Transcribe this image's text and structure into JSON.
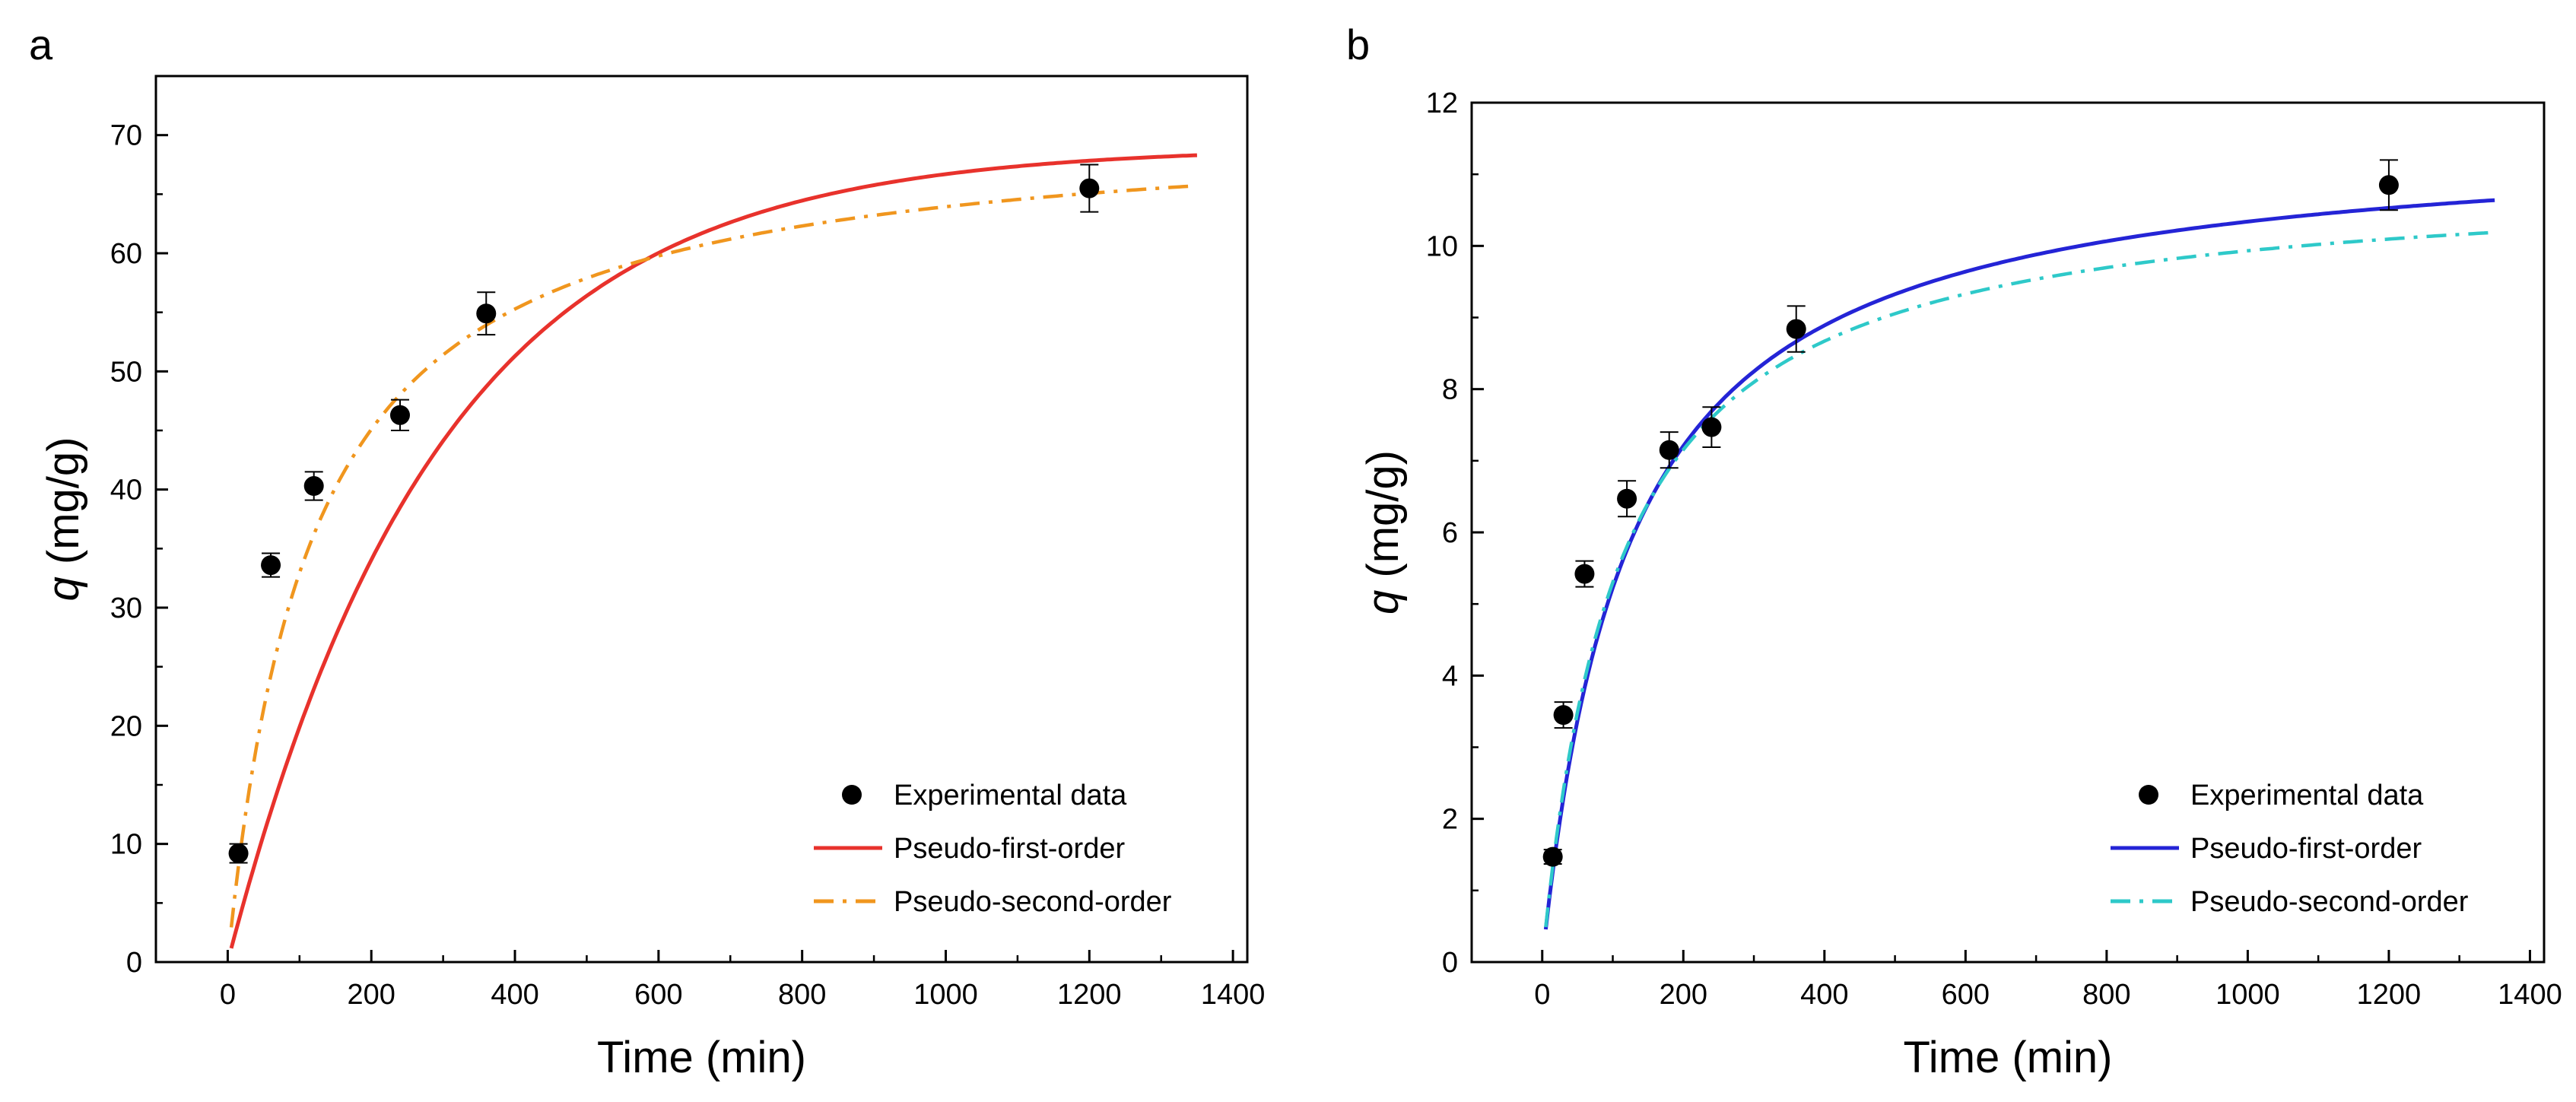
{
  "chart_data": [
    {
      "panel_label": "a",
      "type": "scatter",
      "xlabel": "Time (min)",
      "ylabel_symbol": "q",
      "ylabel_unit": " (mg/g)",
      "xlim": [
        -100,
        1420
      ],
      "ylim": [
        0,
        75
      ],
      "xticks": [
        0,
        200,
        400,
        600,
        800,
        1000,
        1200,
        1400
      ],
      "yticks": [
        0,
        10,
        20,
        30,
        40,
        50,
        60,
        70
      ],
      "legend_position": "bottom-right",
      "experimental": {
        "name": "Experimental data",
        "x": [
          15,
          60,
          120,
          240,
          360,
          1200
        ],
        "y": [
          9.2,
          33.6,
          40.3,
          46.3,
          54.9,
          65.5
        ],
        "error": [
          0.8,
          1.0,
          1.2,
          1.3,
          1.8,
          2.0
        ]
      },
      "series": [
        {
          "name": "Pseudo-first-order",
          "model": "pfo",
          "qe": 69.0,
          "k": 0.0034,
          "color": "#e8322c",
          "dash": "solid"
        },
        {
          "name": "Pseudo-second-order",
          "model": "pso",
          "qe": 71.4,
          "k": 0.00012,
          "color": "#f0961e",
          "dash": "dashdot"
        }
      ]
    },
    {
      "panel_label": "b",
      "type": "scatter",
      "xlabel": "Time (min)",
      "ylabel_symbol": "q",
      "ylabel_unit": " (mg/g)",
      "xlim": [
        -100,
        1420
      ],
      "ylim": [
        0,
        12
      ],
      "xticks": [
        0,
        200,
        400,
        600,
        800,
        1000,
        1200,
        1400
      ],
      "yticks": [
        0,
        2,
        4,
        6,
        8,
        10,
        12
      ],
      "legend_position": "bottom-right",
      "experimental": {
        "name": "Experimental data",
        "x": [
          15,
          30,
          60,
          120,
          180,
          240,
          360,
          1200
        ],
        "y": [
          1.47,
          3.45,
          5.42,
          6.47,
          7.15,
          7.47,
          8.84,
          10.85
        ],
        "error": [
          0.1,
          0.18,
          0.18,
          0.25,
          0.25,
          0.28,
          0.32,
          0.35
        ]
      },
      "series": [
        {
          "name": "Pseudo-first-order",
          "model": "hyp",
          "qe": 11.6,
          "k": 0.0082,
          "color": "#2424d6",
          "dash": "solid"
        },
        {
          "name": "Pseudo-second-order",
          "model": "hyp",
          "qe": 11.0,
          "k": 0.0093,
          "color": "#2ec9c9",
          "dash": "dashdot"
        }
      ]
    }
  ]
}
